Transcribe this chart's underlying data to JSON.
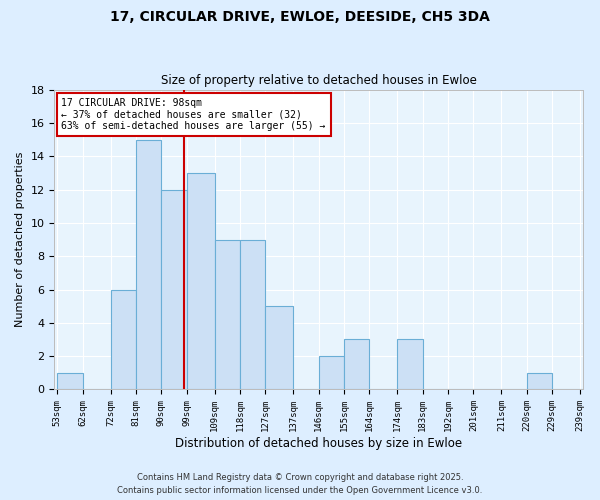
{
  "title": "17, CIRCULAR DRIVE, EWLOE, DEESIDE, CH5 3DA",
  "subtitle": "Size of property relative to detached houses in Ewloe",
  "xlabel": "Distribution of detached houses by size in Ewloe",
  "ylabel": "Number of detached properties",
  "bar_color": "#cce0f5",
  "bar_edge_color": "#6aaed6",
  "bg_color": "#ddeeff",
  "plot_bg_color": "#e8f4fd",
  "grid_color": "#ffffff",
  "bins": [
    53,
    62,
    72,
    81,
    90,
    99,
    109,
    118,
    127,
    137,
    146,
    155,
    164,
    174,
    183,
    192,
    201,
    211,
    220,
    229,
    239
  ],
  "bin_labels": [
    "53sqm",
    "62sqm",
    "72sqm",
    "81sqm",
    "90sqm",
    "99sqm",
    "109sqm",
    "118sqm",
    "127sqm",
    "137sqm",
    "146sqm",
    "155sqm",
    "164sqm",
    "174sqm",
    "183sqm",
    "192sqm",
    "201sqm",
    "211sqm",
    "220sqm",
    "229sqm",
    "239sqm"
  ],
  "counts": [
    1,
    0,
    6,
    15,
    12,
    13,
    9,
    9,
    5,
    0,
    2,
    3,
    0,
    3,
    0,
    0,
    0,
    0,
    1,
    0,
    0
  ],
  "property_size": 98,
  "vline_color": "#cc0000",
  "annotation_line1": "17 CIRCULAR DRIVE: 98sqm",
  "annotation_line2": "← 37% of detached houses are smaller (32)",
  "annotation_line3": "63% of semi-detached houses are larger (55) →",
  "annotation_box_color": "#ffffff",
  "annotation_box_edge": "#cc0000",
  "ylim": [
    0,
    18
  ],
  "yticks": [
    0,
    2,
    4,
    6,
    8,
    10,
    12,
    14,
    16,
    18
  ],
  "footer_line1": "Contains HM Land Registry data © Crown copyright and database right 2025.",
  "footer_line2": "Contains public sector information licensed under the Open Government Licence v3.0."
}
